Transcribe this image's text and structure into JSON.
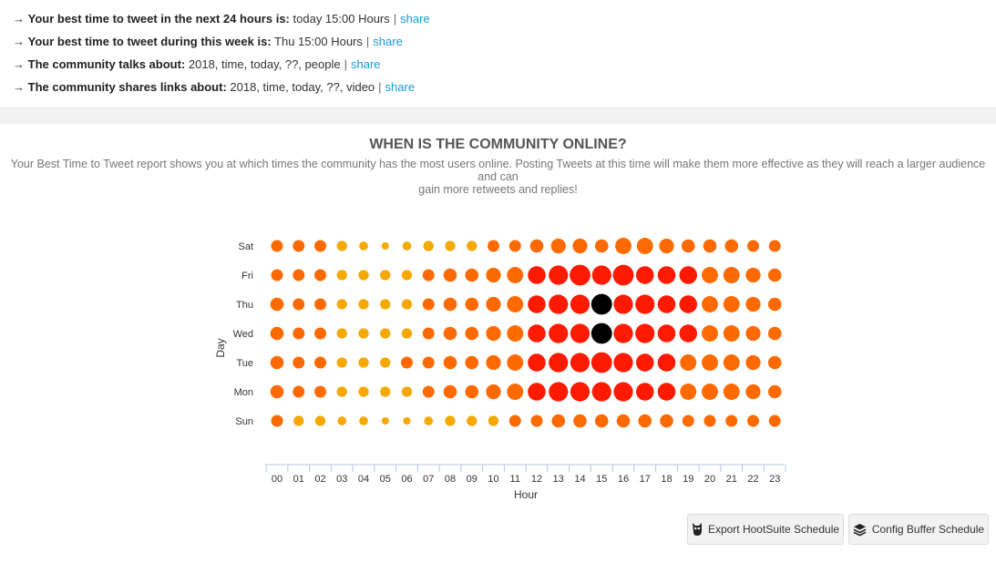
{
  "insights": [
    {
      "arrow": "→",
      "label": "Your best time to tweet in the next 24 hours is:",
      "value": "today 15:00 Hours",
      "sep": "|",
      "link": "share"
    },
    {
      "arrow": "→",
      "label": "Your best time to tweet during this week is:",
      "value": "Thu 15:00 Hours",
      "sep": "|",
      "link": "share"
    },
    {
      "arrow": "→",
      "label": "The community talks about:",
      "value": "2018, time, today, ??, people",
      "sep": "|",
      "link": "share"
    },
    {
      "arrow": "→",
      "label": "The community shares links about:",
      "value": "2018, time, today, ??, video",
      "sep": "|",
      "link": "share"
    }
  ],
  "section": {
    "title": "WHEN IS THE COMMUNITY ONLINE?",
    "desc_line1": "Your Best Time to Tweet report shows you at which times the community has the most users online. Posting Tweets at this time will make them more effective as they will reach a larger audience and can",
    "desc_line2": "gain more retweets and replies!"
  },
  "buttons": {
    "hootsuite": {
      "label": "Export HootSuite Schedule",
      "icon": "owl-icon"
    },
    "buffer": {
      "label": "Config Buffer Schedule",
      "icon": "layers-icon"
    }
  },
  "chart_data": {
    "type": "scatter",
    "xlabel": "Hour",
    "ylabel": "Day",
    "x": [
      "00",
      "01",
      "02",
      "03",
      "04",
      "05",
      "06",
      "07",
      "08",
      "09",
      "10",
      "11",
      "12",
      "13",
      "14",
      "15",
      "16",
      "17",
      "18",
      "19",
      "20",
      "21",
      "22",
      "23"
    ],
    "y": [
      "Sat",
      "Fri",
      "Thu",
      "Wed",
      "Tue",
      "Mon",
      "Sun"
    ],
    "value_scale": "relative activity 0-10 (bubble size and color)",
    "values": [
      [
        4,
        4,
        4,
        3,
        2,
        1,
        2,
        3,
        3,
        3,
        4,
        4,
        5,
        6,
        6,
        5,
        7,
        7,
        6,
        5,
        5,
        5,
        4,
        4
      ],
      [
        4,
        4,
        4,
        3,
        3,
        3,
        3,
        4,
        5,
        5,
        6,
        7,
        8,
        9,
        10,
        9,
        10,
        8,
        8,
        8,
        7,
        7,
        6,
        5
      ],
      [
        5,
        4,
        4,
        3,
        3,
        3,
        3,
        4,
        5,
        5,
        6,
        7,
        8,
        9,
        9,
        10,
        9,
        9,
        8,
        8,
        7,
        7,
        6,
        5
      ],
      [
        5,
        4,
        4,
        3,
        3,
        3,
        3,
        4,
        5,
        5,
        6,
        7,
        8,
        9,
        9,
        10,
        9,
        9,
        8,
        8,
        7,
        7,
        6,
        5
      ],
      [
        5,
        4,
        4,
        3,
        3,
        3,
        4,
        4,
        5,
        5,
        6,
        7,
        8,
        9,
        9,
        10,
        9,
        8,
        8,
        7,
        7,
        7,
        6,
        5
      ],
      [
        5,
        4,
        4,
        3,
        3,
        3,
        3,
        4,
        5,
        5,
        6,
        7,
        8,
        9,
        9,
        9,
        9,
        8,
        8,
        7,
        7,
        7,
        6,
        5
      ],
      [
        4,
        3,
        3,
        2,
        2,
        1,
        1,
        2,
        3,
        3,
        3,
        4,
        4,
        5,
        5,
        5,
        5,
        5,
        5,
        4,
        4,
        4,
        4,
        4
      ]
    ],
    "peak_color": "#000000",
    "colors": {
      "low": "#f5a800",
      "mid": "#ff6a00",
      "high": "#ff1a00",
      "peak": "#000000"
    },
    "legend": "none",
    "grid": false
  }
}
